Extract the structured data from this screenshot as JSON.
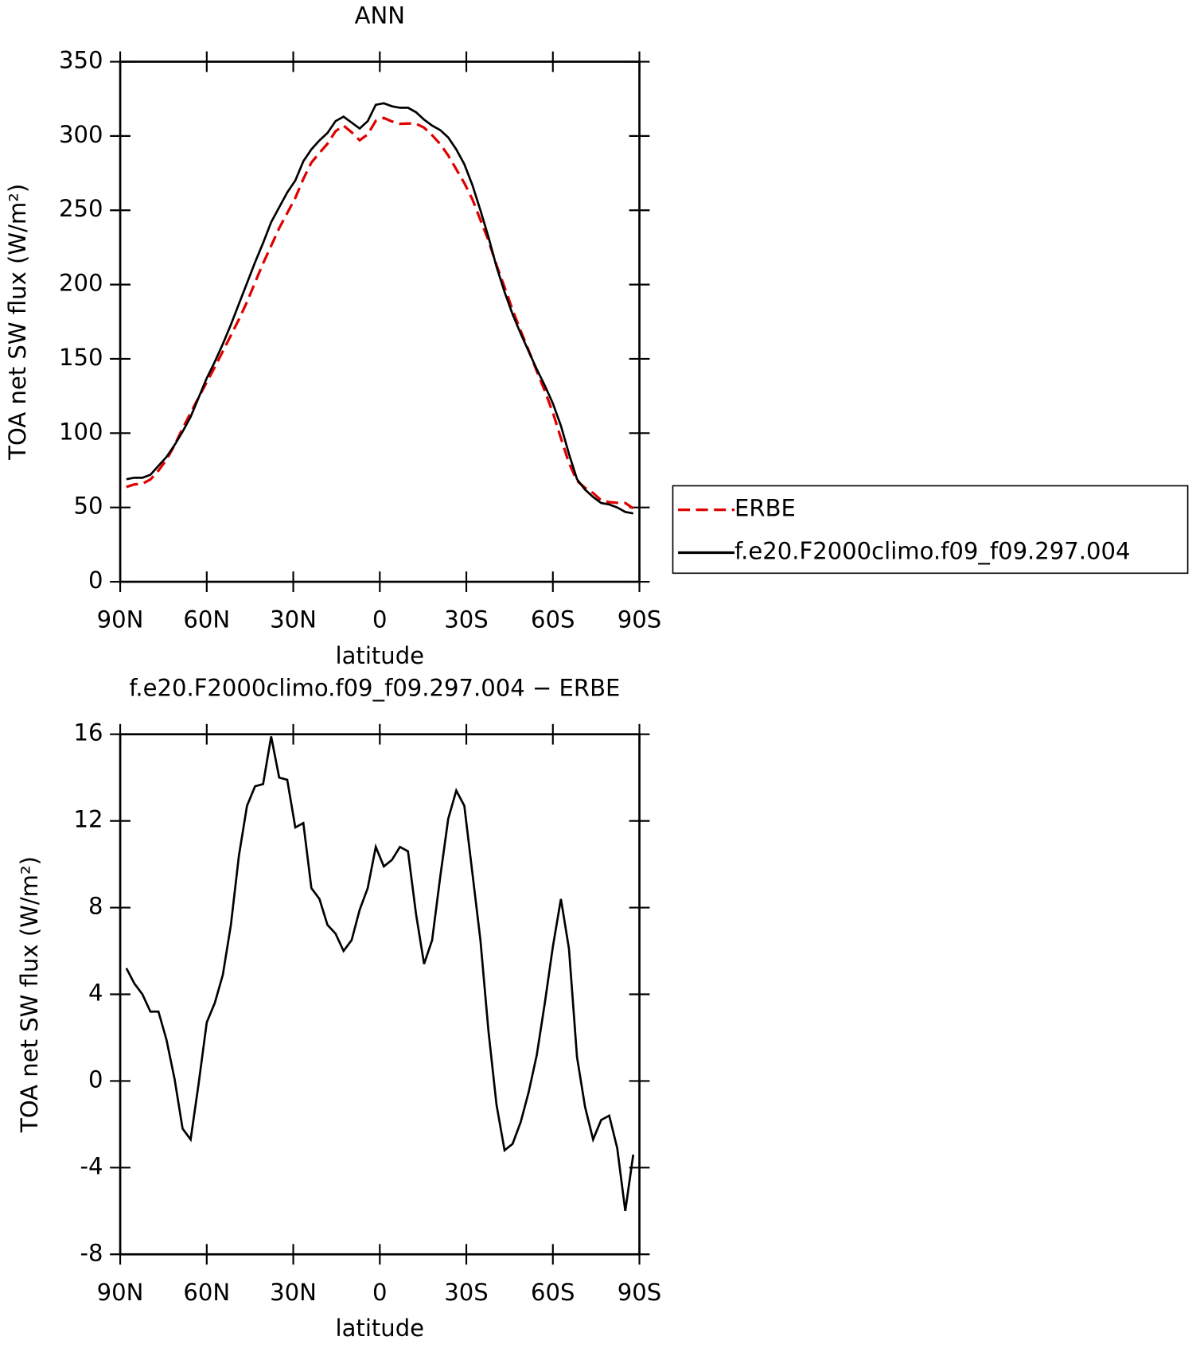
{
  "chart_data": [
    {
      "type": "line",
      "title": "ANN",
      "xlabel": "latitude",
      "ylabel": "TOA net SW flux (W/m²)",
      "x": [
        87.86,
        85.1,
        82.31,
        79.53,
        76.74,
        73.95,
        71.16,
        68.37,
        65.58,
        62.79,
        60.0,
        57.21,
        54.42,
        51.63,
        48.84,
        46.04,
        43.25,
        40.46,
        37.67,
        34.88,
        32.09,
        29.3,
        26.51,
        23.72,
        20.93,
        18.14,
        15.35,
        12.56,
        9.77,
        6.98,
        4.19,
        1.4,
        -1.4,
        -4.19,
        -6.98,
        -9.77,
        -12.56,
        -15.35,
        -18.14,
        -20.93,
        -23.72,
        -26.51,
        -29.3,
        -32.09,
        -34.88,
        -37.67,
        -40.46,
        -43.25,
        -46.04,
        -48.84,
        -51.63,
        -54.42,
        -57.21,
        -60.0,
        -62.79,
        -65.58,
        -68.37,
        -71.16,
        -73.95,
        -76.74,
        -79.53,
        -82.31,
        -85.1,
        -87.86
      ],
      "series": [
        {
          "name": "ERBE",
          "color": "#e00000",
          "dashed": true,
          "values": [
            63.8,
            65.5,
            66.0,
            68.8,
            74.8,
            82.1,
            91.9,
            103.2,
            113.7,
            124.1,
            134.3,
            144.4,
            155.1,
            165.8,
            176.6,
            188.3,
            201.4,
            214.3,
            226.1,
            238.0,
            248.1,
            258.3,
            271.1,
            282.1,
            288.6,
            294.8,
            303.2,
            307.0,
            302.5,
            297.1,
            301.1,
            310.2,
            312.1,
            309.8,
            308.2,
            308.4,
            308.3,
            305.6,
            300.5,
            294.6,
            286.9,
            277.6,
            268.3,
            257.4,
            243.5,
            229.7,
            213.1,
            198.2,
            182.9,
            168.9,
            155.5,
            141.8,
            128.4,
            113.8,
            96.6,
            79.9,
            67.9,
            63.2,
            59.7,
            54.8,
            53.6,
            53.1,
            53.0,
            49.4
          ]
        },
        {
          "name": "f.e20.F2000climo.f09_f09.297.004",
          "color": "#000000",
          "dashed": false,
          "values": [
            69,
            70,
            70,
            72,
            78,
            84,
            92,
            101,
            111,
            124,
            137,
            148,
            160,
            173,
            187,
            201,
            215,
            228,
            242,
            252,
            262,
            270,
            283,
            291,
            297,
            302,
            310,
            313,
            309,
            305,
            310,
            321,
            322,
            320,
            319,
            319,
            316,
            311,
            307,
            304,
            299,
            291,
            281,
            267,
            250,
            232,
            212,
            195,
            180,
            167,
            155,
            143,
            132,
            120,
            105,
            86,
            69,
            62,
            57,
            53,
            52,
            50,
            47,
            46
          ]
        }
      ],
      "xlim": [
        90,
        -90
      ],
      "xticks": [
        {
          "value": 90,
          "label": "90N"
        },
        {
          "value": 60,
          "label": "60N"
        },
        {
          "value": 30,
          "label": "30N"
        },
        0,
        {
          "value": -30,
          "label": "30S"
        },
        {
          "value": -60,
          "label": "60S"
        },
        {
          "value": -90,
          "label": "90S"
        }
      ],
      "ylim": [
        0,
        350
      ],
      "yticks": [
        0,
        50,
        100,
        150,
        200,
        250,
        300,
        350
      ],
      "legend": "right"
    },
    {
      "type": "line",
      "title": "f.e20.F2000climo.f09_f09.297.004 − ERBE",
      "xlabel": "latitude",
      "ylabel": "TOA net SW flux (W/m²)",
      "x": [
        87.86,
        85.1,
        82.31,
        79.53,
        76.74,
        73.95,
        71.16,
        68.37,
        65.58,
        62.79,
        60.0,
        57.21,
        54.42,
        51.63,
        48.84,
        46.04,
        43.25,
        40.46,
        37.67,
        34.88,
        32.09,
        29.3,
        26.51,
        23.72,
        20.93,
        18.14,
        15.35,
        12.56,
        9.77,
        6.98,
        4.19,
        1.4,
        -1.4,
        -4.19,
        -6.98,
        -9.77,
        -12.56,
        -15.35,
        -18.14,
        -20.93,
        -23.72,
        -26.51,
        -29.3,
        -32.09,
        -34.88,
        -37.67,
        -40.46,
        -43.25,
        -46.04,
        -48.84,
        -51.63,
        -54.42,
        -57.21,
        -60.0,
        -62.79,
        -65.58,
        -68.37,
        -71.16,
        -73.95,
        -76.74,
        -79.53,
        -82.31,
        -85.1,
        -87.86
      ],
      "values": [
        5.2,
        4.5,
        4.0,
        3.2,
        3.2,
        1.9,
        0.1,
        -2.2,
        -2.7,
        -0.1,
        2.7,
        3.6,
        4.9,
        7.2,
        10.4,
        12.7,
        13.6,
        13.7,
        15.9,
        14.0,
        13.9,
        11.7,
        11.9,
        8.9,
        8.4,
        7.2,
        6.8,
        6.0,
        6.5,
        7.9,
        8.9,
        10.8,
        9.9,
        10.2,
        10.8,
        10.6,
        7.7,
        5.4,
        6.5,
        9.4,
        12.1,
        13.4,
        12.7,
        9.6,
        6.5,
        2.3,
        -1.1,
        -3.2,
        -2.9,
        -1.9,
        -0.5,
        1.2,
        3.6,
        6.2,
        8.4,
        6.1,
        1.1,
        -1.2,
        -2.7,
        -1.8,
        -1.6,
        -3.1,
        -6.0,
        -3.4
      ],
      "color": "#000000",
      "xlim": [
        90,
        -90
      ],
      "xticks": [
        {
          "value": 90,
          "label": "90N"
        },
        {
          "value": 60,
          "label": "60N"
        },
        {
          "value": 30,
          "label": "30N"
        },
        0,
        {
          "value": -30,
          "label": "30S"
        },
        {
          "value": -60,
          "label": "60S"
        },
        {
          "value": -90,
          "label": "90S"
        }
      ],
      "ylim": [
        -8,
        16
      ],
      "yticks": [
        -8,
        -4,
        0,
        4,
        8,
        12,
        16
      ]
    }
  ]
}
